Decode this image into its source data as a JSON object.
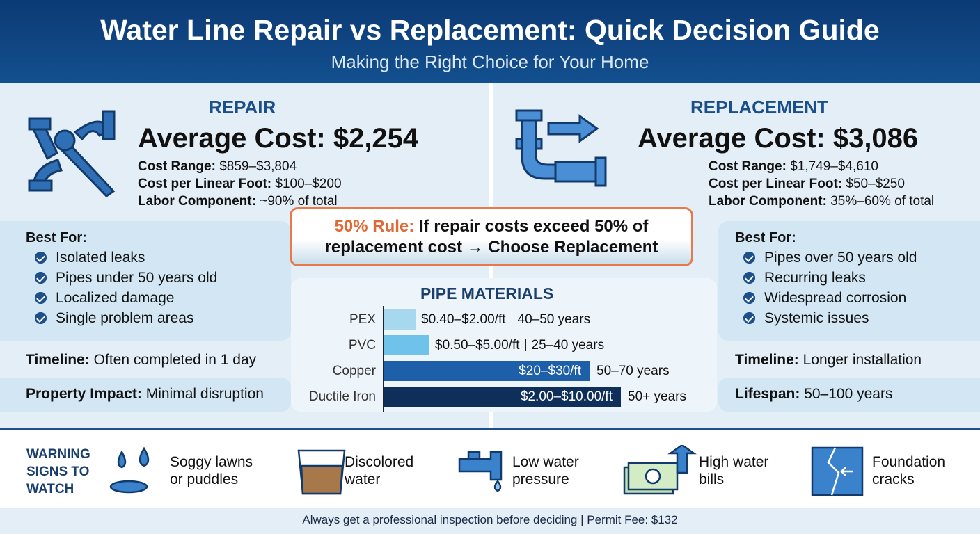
{
  "header": {
    "title": "Water Line Repair vs Replacement: Quick Decision Guide",
    "subtitle": "Making the Right Choice for Your Home"
  },
  "repair": {
    "heading": "REPAIR",
    "average_cost": "Average Cost: $2,254",
    "details": [
      {
        "label": "Cost Range:",
        "value": "$859–$3,804"
      },
      {
        "label": "Cost per Linear Foot:",
        "value": "$100–$200"
      },
      {
        "label": "Labor Component:",
        "value": "~90% of total"
      }
    ],
    "best_for_title": "Best For:",
    "best_for": [
      "Isolated leaks",
      "Pipes under 50 years old",
      "Localized damage",
      "Single problem areas"
    ],
    "timeline": {
      "label": "Timeline:",
      "value": "Often completed in 1 day"
    },
    "impact": {
      "label": "Property Impact:",
      "value": "Minimal disruption"
    }
  },
  "replacement": {
    "heading": "REPLACEMENT",
    "average_cost": "Average Cost: $3,086",
    "details": [
      {
        "label": "Cost Range:",
        "value": "$1,749–$4,610"
      },
      {
        "label": "Cost per Linear Foot:",
        "value": "$50–$250"
      },
      {
        "label": "Labor Component:",
        "value": "35%–60% of total"
      }
    ],
    "best_for_title": "Best For:",
    "best_for": [
      "Pipes over 50 years old",
      "Recurring leaks",
      "Widespread corrosion",
      "Systemic issues"
    ],
    "timeline": {
      "label": "Timeline:",
      "value": "Longer installation"
    },
    "lifespan": {
      "label": "Lifespan:",
      "value": "50–100 years"
    }
  },
  "rule": {
    "label": "50% Rule:",
    "text": "If repair costs exceed 50% of replacement cost → Choose Replacement"
  },
  "pipe_materials": {
    "title": "PIPE MATERIALS",
    "rows": [
      {
        "name": "PEX",
        "cost": "$0.40–$2.00/ft",
        "lifespan": "40–50 years"
      },
      {
        "name": "PVC",
        "cost": "$0.50–$5.00/ft",
        "lifespan": "25–40 years"
      },
      {
        "name": "Copper",
        "cost": "$20–$30/ft",
        "lifespan": "50–70 years"
      },
      {
        "name": "Ductile Iron",
        "cost": "$2.00–$10.00/ft",
        "lifespan": "50+ years"
      }
    ]
  },
  "warning": {
    "title": "WARNING SIGNS TO WATCH",
    "signs": [
      "Soggy lawns or puddles",
      "Discolored water",
      "Low water pressure",
      "High water bills",
      "Foundation cracks"
    ]
  },
  "footer": "Always get a professional inspection before deciding | Permit Fee: $132"
}
